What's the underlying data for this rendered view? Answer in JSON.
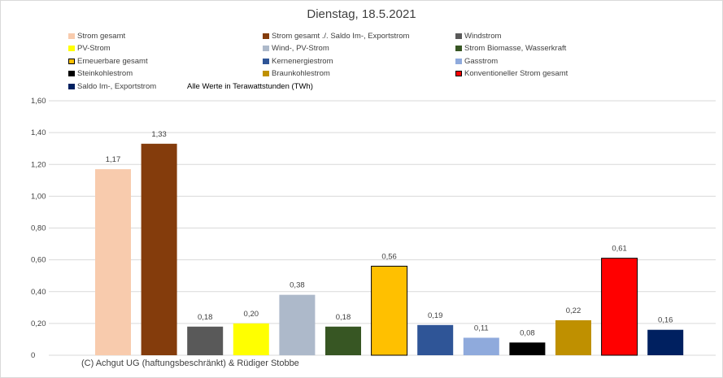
{
  "chart_data": {
    "type": "bar",
    "title": "Dienstag, 18.5.2021",
    "subtitle": "Alle Werte in Terawattstunden (TWh)",
    "ylim": [
      0,
      1.6
    ],
    "yticks": [
      "0",
      "0,20",
      "0,40",
      "0,60",
      "0,80",
      "1,00",
      "1,20",
      "1,40",
      "1,60"
    ],
    "grid": true,
    "legend_position": "top",
    "categories": [
      "Strom gesamt",
      "Strom gesamt ./. Saldo Im-, Exportstrom",
      "Windstrom",
      "PV-Strom",
      "Wind-, PV-Strom",
      "Strom Biomasse, Wasserkraft",
      "Erneuerbare gesamt",
      "Kernenergiestrom",
      "Gasstrom",
      "Steinkohlestrom",
      "Braunkohlestrom",
      "Konventioneller Strom gesamt",
      "Saldo Im-, Exportstrom"
    ],
    "values": [
      1.17,
      1.33,
      0.18,
      0.2,
      0.38,
      0.18,
      0.56,
      0.19,
      0.11,
      0.08,
      0.22,
      0.61,
      0.16
    ],
    "value_labels": [
      "1,17",
      "1,33",
      "0,18",
      "0,20",
      "0,38",
      "0,18",
      "0,56",
      "0,19",
      "0,11",
      "0,08",
      "0,22",
      "0,61",
      "0,16"
    ],
    "colors": [
      "#f8cbad",
      "#843c0c",
      "#595959",
      "#ffff00",
      "#adb9ca",
      "#375623",
      "#ffc000",
      "#2f5597",
      "#8faadc",
      "#000000",
      "#bf9000",
      "#ff0000",
      "#002060"
    ],
    "outlined": [
      false,
      false,
      false,
      false,
      false,
      false,
      true,
      false,
      false,
      false,
      false,
      true,
      false
    ]
  },
  "footer": {
    "copyright": "(C) Achgut UG (haftungsbeschränkt) & Rüdiger Stobbe"
  }
}
